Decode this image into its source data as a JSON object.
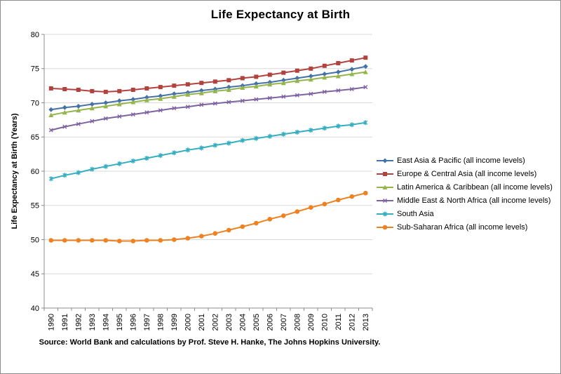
{
  "chart_data": {
    "type": "line",
    "title": "Life Expectancy at Birth",
    "xlabel": "",
    "ylabel": "Life Expectancy at Birth (Years)",
    "ylim": [
      40,
      80
    ],
    "ytick_step": 5,
    "grid": true,
    "legend_position": "right",
    "categories": [
      "1990",
      "1991",
      "1992",
      "1993",
      "1994",
      "1995",
      "1996",
      "1997",
      "1998",
      "1999",
      "2000",
      "2001",
      "2002",
      "2003",
      "2004",
      "2005",
      "2006",
      "2007",
      "2008",
      "2009",
      "2010",
      "2011",
      "2012",
      "2013"
    ],
    "series": [
      {
        "name": "East Asia & Pacific (all income levels)",
        "color": "#4471A8",
        "marker": "diamond",
        "values": [
          69.0,
          69.3,
          69.5,
          69.8,
          70.0,
          70.3,
          70.5,
          70.8,
          71.0,
          71.3,
          71.5,
          71.8,
          72.0,
          72.3,
          72.5,
          72.8,
          73.0,
          73.3,
          73.6,
          73.9,
          74.2,
          74.5,
          74.9,
          75.3
        ]
      },
      {
        "name": "Europe & Central Asia (all income levels)",
        "color": "#B2423E",
        "marker": "square",
        "values": [
          72.1,
          72.0,
          71.9,
          71.7,
          71.6,
          71.7,
          71.9,
          72.1,
          72.3,
          72.5,
          72.7,
          72.9,
          73.1,
          73.3,
          73.6,
          73.8,
          74.1,
          74.4,
          74.7,
          75.0,
          75.4,
          75.8,
          76.2,
          76.6
        ]
      },
      {
        "name": "Latin America & Caribbean (all income levels)",
        "color": "#94B54B",
        "marker": "triangle",
        "values": [
          68.2,
          68.6,
          68.9,
          69.2,
          69.5,
          69.8,
          70.1,
          70.4,
          70.6,
          70.9,
          71.2,
          71.4,
          71.7,
          71.9,
          72.2,
          72.4,
          72.7,
          72.9,
          73.2,
          73.4,
          73.7,
          73.9,
          74.2,
          74.5
        ]
      },
      {
        "name": "Middle East & North Africa (all income levels)",
        "color": "#7E62A1",
        "marker": "x",
        "values": [
          66.0,
          66.5,
          66.9,
          67.3,
          67.7,
          68.0,
          68.3,
          68.6,
          68.9,
          69.2,
          69.4,
          69.7,
          69.9,
          70.1,
          70.3,
          70.5,
          70.7,
          70.9,
          71.1,
          71.3,
          71.6,
          71.8,
          72.0,
          72.3
        ]
      },
      {
        "name": "South Asia",
        "color": "#35AEC1",
        "marker": "asterisk",
        "values": [
          58.9,
          59.4,
          59.8,
          60.3,
          60.7,
          61.1,
          61.5,
          61.9,
          62.3,
          62.7,
          63.1,
          63.4,
          63.8,
          64.1,
          64.5,
          64.8,
          65.1,
          65.4,
          65.7,
          66.0,
          66.3,
          66.6,
          66.8,
          67.1
        ]
      },
      {
        "name": "Sub-Saharan Africa (all income levels)",
        "color": "#EE8222",
        "marker": "circle",
        "values": [
          49.9,
          49.9,
          49.9,
          49.9,
          49.9,
          49.8,
          49.8,
          49.9,
          49.9,
          50.0,
          50.2,
          50.5,
          50.9,
          51.4,
          51.9,
          52.4,
          53.0,
          53.5,
          54.1,
          54.7,
          55.2,
          55.8,
          56.3,
          56.8
        ]
      }
    ]
  },
  "source_note": "Source: World Bank and calculations by Prof. Steve H. Hanke, The Johns Hopkins University."
}
